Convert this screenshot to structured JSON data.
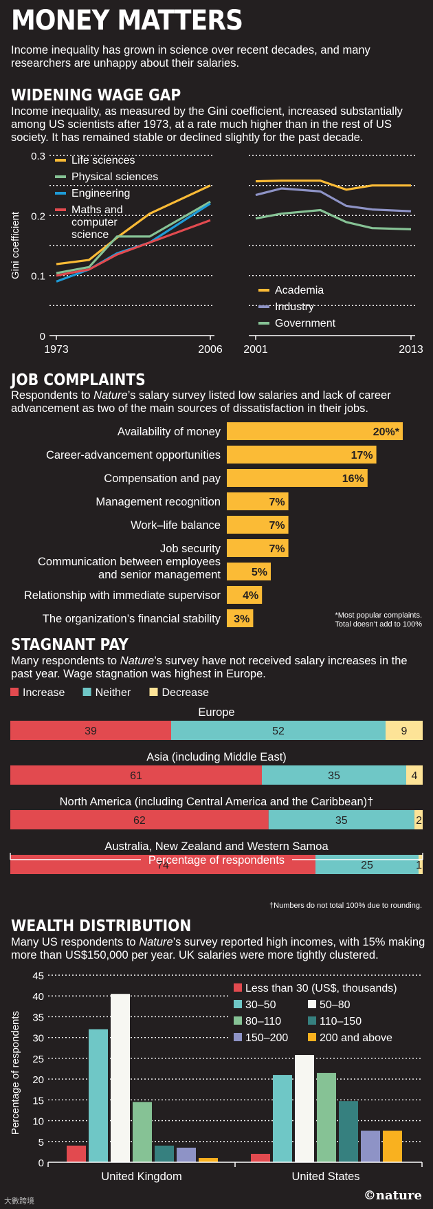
{
  "header": {
    "title": "MONEY MATTERS",
    "intro": "Income inequality has grown in science over recent decades, and many researchers are unhappy about their salaries."
  },
  "wage_gap": {
    "title": "WIDENING WAGE GAP",
    "desc": "Income inequality, as measured by the Gini coefficient, increased substantially among US scientists after 1973, at a rate much higher than in the rest of US society. It has remained stable or declined slightly for the past decade."
  },
  "job_complaints": {
    "title": "JOB COMPLAINTS",
    "desc_pre": "Respondents to ",
    "desc_em": "Nature",
    "desc_post": "’s salary survey listed low salaries and lack of career advancement as two of the main sources of dissatisfaction in their jobs.",
    "footnote_1": "*Most popular complaints.",
    "footnote_2": "Total doesn’t add to 100%"
  },
  "stagnant_pay": {
    "title": "STAGNANT PAY",
    "desc_pre": "Many respondents to ",
    "desc_em": "Nature",
    "desc_post": "’s survey have not received salary increases in the past year. Wage stagnation was highest in Europe.",
    "axis_label": "Percentage of respondents",
    "footnote": "†Numbers do not total 100% due to rounding."
  },
  "wealth": {
    "title": "WEALTH DISTRIBUTION",
    "desc_pre": "Many US respondents to ",
    "desc_em": "Nature",
    "desc_post": "’s survey reported high incomes, with 15% making more than US$150,000 per year. UK salaries were more tightly clustered."
  },
  "brand": {
    "logo": "©nature",
    "watermark": "大數跨境"
  },
  "colors": {
    "bg": "#231f20",
    "yellow": "#fbbb36",
    "green": "#86c295",
    "blue": "#1e9bd7",
    "red": "#e24a4f",
    "slate": "#8e93c6",
    "teal": "#6fc7c6",
    "cream": "#fde397",
    "white": "#f7f7f2",
    "darkteal": "#36807f",
    "orange": "#f9b11f"
  },
  "chart_data": [
    {
      "type": "line",
      "ylabel": "Gini coefficient",
      "ylim": [
        0,
        0.3
      ],
      "yticks": [
        "0",
        "0.1",
        "0.2",
        "0.3"
      ],
      "xticks": [
        "1973",
        "2006"
      ],
      "x": [
        1973,
        1980,
        1986,
        1993,
        2006
      ],
      "series": [
        {
          "name": "Life sciences",
          "color": "#fbbb36",
          "values": [
            0.119,
            0.126,
            0.163,
            0.203,
            0.25
          ]
        },
        {
          "name": "Physical sciences",
          "color": "#86c295",
          "values": [
            0.104,
            0.114,
            0.165,
            0.165,
            0.223
          ]
        },
        {
          "name": "Engineering",
          "color": "#1e9bd7",
          "values": [
            0.09,
            0.11,
            0.137,
            0.155,
            0.22
          ]
        },
        {
          "name": "Maths and computer science",
          "color": "#e24a4f",
          "values": [
            0.1,
            0.11,
            0.135,
            0.155,
            0.192
          ]
        }
      ],
      "grid": true
    },
    {
      "type": "line",
      "ylim": [
        0,
        0.3
      ],
      "xticks": [
        "2001",
        "2013"
      ],
      "x": [
        2001,
        2003,
        2006,
        2008,
        2010,
        2013
      ],
      "series": [
        {
          "name": "Academia",
          "color": "#fbbb36",
          "values": [
            0.257,
            0.258,
            0.258,
            0.243,
            0.25,
            0.25
          ]
        },
        {
          "name": "Industry",
          "color": "#8e93c6",
          "values": [
            0.234,
            0.245,
            0.24,
            0.216,
            0.21,
            0.207
          ]
        },
        {
          "name": "Government",
          "color": "#86c295",
          "values": [
            0.195,
            0.203,
            0.209,
            0.189,
            0.179,
            0.177
          ]
        }
      ],
      "grid": true
    },
    {
      "type": "bar",
      "orientation": "horizontal",
      "categories": [
        "Availability of money",
        "Career-advancement opportunities",
        "Compensation and pay",
        "Management recognition",
        "Work–life balance",
        "Job security",
        [
          "Communication between employees",
          "and senior management"
        ],
        "Relationship with immediate supervisor",
        "The organization’s financial stability"
      ],
      "values": [
        20,
        17,
        16,
        7,
        7,
        7,
        5,
        4,
        3
      ],
      "labels": [
        "20%*",
        "17%",
        "16%",
        "7%",
        "7%",
        "7%",
        "5%",
        "4%",
        "3%"
      ],
      "color": "#fbbb36"
    },
    {
      "type": "bar",
      "orientation": "horizontal",
      "stacked": true,
      "series_names": [
        "Increase",
        "Neither",
        "Decrease"
      ],
      "series_colors": [
        "#e24a4f",
        "#6fc7c6",
        "#fde397"
      ],
      "categories": [
        "Europe",
        "Asia (including Middle East)",
        "North America (including Central America and the Caribbean)†",
        "Australia, New Zealand and Western Samoa"
      ],
      "values": [
        [
          39,
          52,
          9
        ],
        [
          61,
          35,
          4
        ],
        [
          62,
          35,
          2
        ],
        [
          74,
          25,
          1
        ]
      ],
      "xlabel": "Percentage of respondents"
    },
    {
      "type": "bar",
      "ylabel": "Percentage of respondents",
      "ylim": [
        0,
        45
      ],
      "yticks": [
        0,
        5,
        10,
        15,
        20,
        25,
        30,
        35,
        40,
        45
      ],
      "categories": [
        "United Kingdom",
        "United States"
      ],
      "legend": [
        {
          "name": "Less than 30 (US$, thousands)",
          "color": "#e24a4f"
        },
        {
          "name": "30–50",
          "color": "#6fc7c6"
        },
        {
          "name": "50–80",
          "color": "#f7f7f2"
        },
        {
          "name": "80–110",
          "color": "#86c295"
        },
        {
          "name": "110–150",
          "color": "#36807f"
        },
        {
          "name": "150–200",
          "color": "#8e93c6"
        },
        {
          "name": "200 and above",
          "color": "#f9b11f"
        }
      ],
      "series_values": [
        [
          4,
          32,
          40.5,
          14.5,
          4,
          3.5,
          1
        ],
        [
          2,
          21,
          25.8,
          21.5,
          14.7,
          7.6,
          7.6
        ]
      ]
    }
  ]
}
